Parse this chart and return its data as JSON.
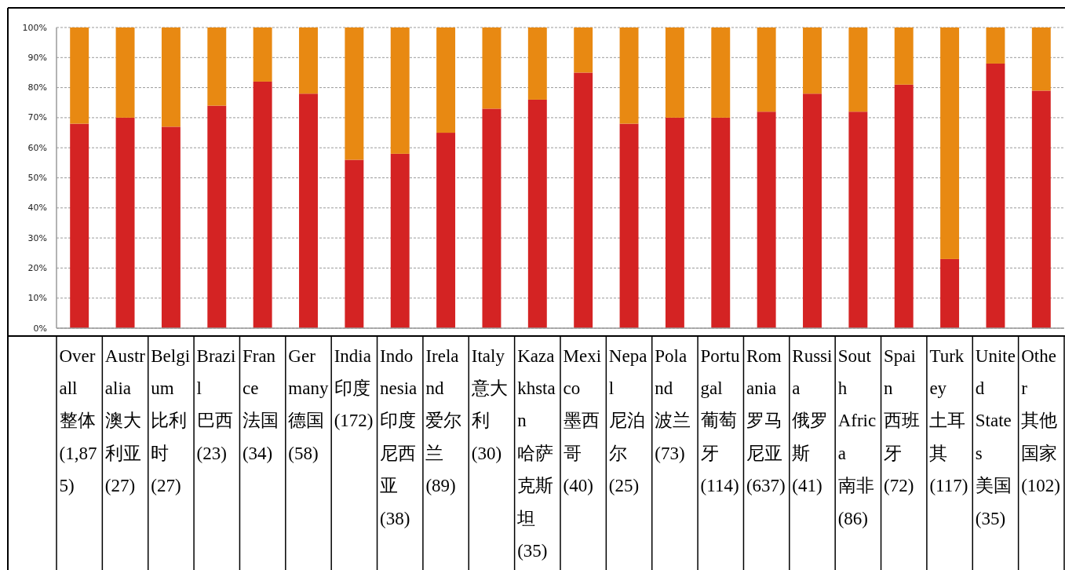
{
  "chart_data": {
    "type": "bar",
    "stacked": true,
    "categories": [
      "Overall 整体 (1,875)",
      "Australia 澳大利亚 (27)",
      "Belgium 比利时 (27)",
      "Brazil 巴西 (23)",
      "France 法国 (34)",
      "Germany 德国 (58)",
      "India 印度 (172)",
      "Indonesia 印度尼西亚 (38)",
      "Ireland 爱尔兰 (89)",
      "Italy 意大利 (30)",
      "Kazakhstan 哈萨克斯坦 (35)",
      "Mexico 墨西哥 (40)",
      "Nepal 尼泊尔 (25)",
      "Poland 波兰 (73)",
      "Portugal 葡萄牙 (114)",
      "Romania 罗马尼亚 (637)",
      "Russia 俄罗斯 (41)",
      "South Africa 南非 (86)",
      "Spain 西班牙 (72)",
      "Turkey 土耳其 (117)",
      "United States 美国 (35)",
      "Other 其他国家 (102)"
    ],
    "series": [
      {
        "color": "#d42323",
        "values": [
          68,
          70,
          67,
          74,
          82,
          78,
          56,
          58,
          65,
          73,
          76,
          85,
          68,
          70,
          70,
          72,
          78,
          72,
          81,
          23,
          88,
          79
        ]
      },
      {
        "color": "#e88912",
        "values": [
          32,
          30,
          33,
          26,
          18,
          22,
          44,
          42,
          35,
          27,
          24,
          15,
          32,
          30,
          30,
          28,
          22,
          28,
          19,
          77,
          12,
          21
        ]
      }
    ],
    "ylim": [
      0,
      100
    ],
    "yticks": [
      {
        "value": 0,
        "label": "0%"
      },
      {
        "value": 10,
        "label": "10%"
      },
      {
        "value": 20,
        "label": "20%"
      },
      {
        "value": 30,
        "label": "30%"
      },
      {
        "value": 40,
        "label": "40%"
      },
      {
        "value": 50,
        "label": "50%"
      },
      {
        "value": 60,
        "label": "60%"
      },
      {
        "value": 70,
        "label": "70%"
      },
      {
        "value": 80,
        "label": "80%"
      },
      {
        "value": 90,
        "label": "90%"
      },
      {
        "value": 100,
        "label": "100%"
      }
    ],
    "grid": "y"
  }
}
